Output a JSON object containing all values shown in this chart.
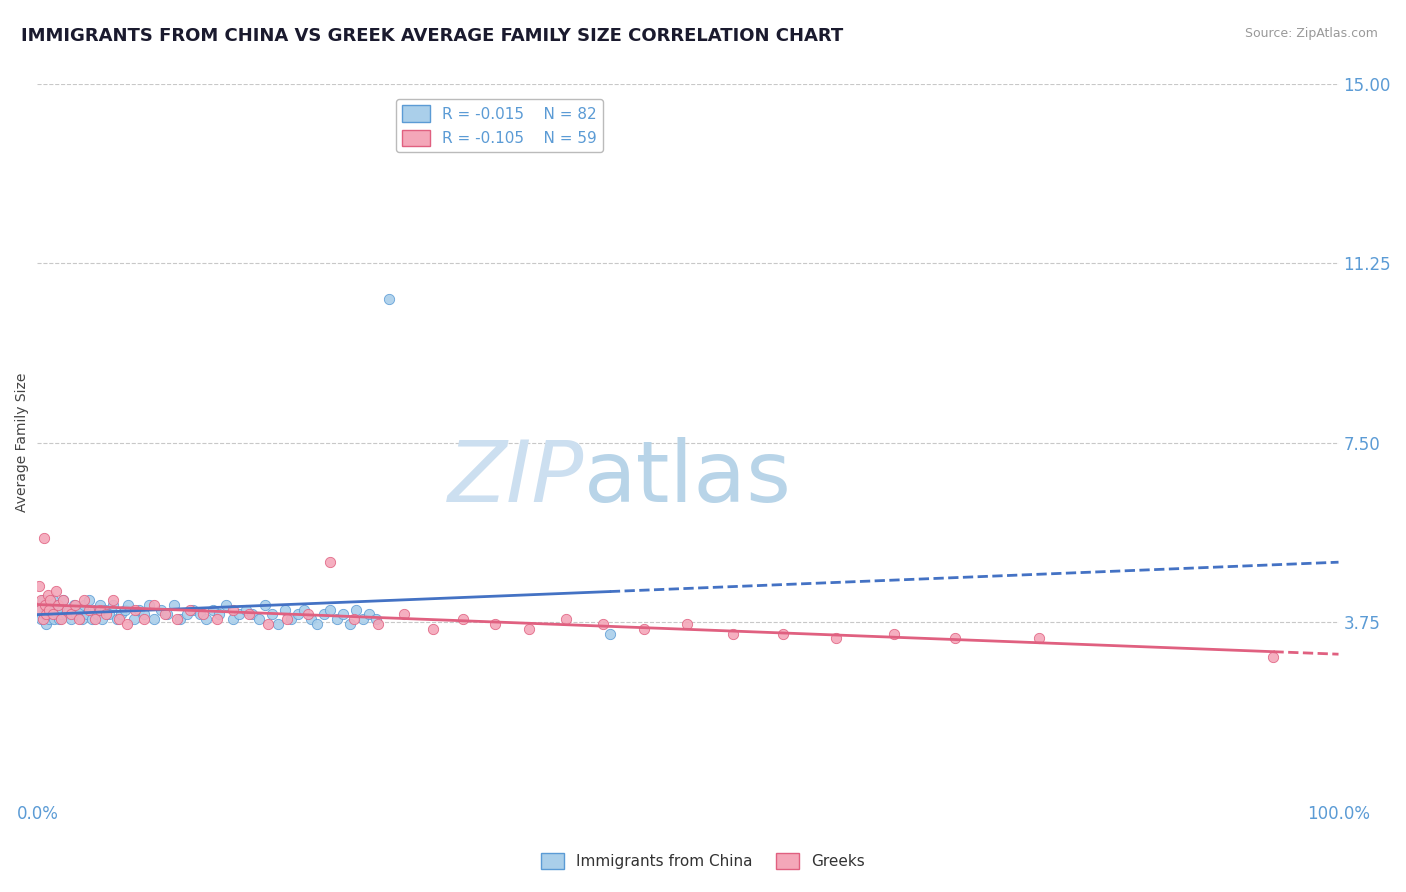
{
  "title": "IMMIGRANTS FROM CHINA VS GREEK AVERAGE FAMILY SIZE CORRELATION CHART",
  "source_text": "Source: ZipAtlas.com",
  "ylabel": "Average Family Size",
  "xlim": [
    0.0,
    1.0
  ],
  "ylim": [
    0.0,
    15.0
  ],
  "yticks": [
    3.75,
    7.5,
    11.25,
    15.0
  ],
  "yticklabels": [
    "3.75",
    "7.50",
    "11.25",
    "15.00"
  ],
  "axis_color": "#5b9bd5",
  "grid_color": "#c8c8c8",
  "background_color": "#ffffff",
  "series": [
    {
      "label": "Immigrants from China",
      "R": -0.015,
      "N": 82,
      "color": "#aacfea",
      "edge_color": "#5b9bd5",
      "trend_color": "#4472c4",
      "x": [
        0.002,
        0.003,
        0.004,
        0.005,
        0.006,
        0.007,
        0.008,
        0.009,
        0.01,
        0.011,
        0.012,
        0.013,
        0.014,
        0.015,
        0.016,
        0.017,
        0.018,
        0.019,
        0.02,
        0.022,
        0.024,
        0.026,
        0.028,
        0.03,
        0.032,
        0.034,
        0.036,
        0.038,
        0.04,
        0.042,
        0.044,
        0.046,
        0.048,
        0.05,
        0.052,
        0.055,
        0.058,
        0.061,
        0.064,
        0.067,
        0.07,
        0.074,
        0.078,
        0.082,
        0.086,
        0.09,
        0.095,
        0.1,
        0.105,
        0.11,
        0.115,
        0.12,
        0.125,
        0.13,
        0.135,
        0.14,
        0.145,
        0.15,
        0.155,
        0.16,
        0.165,
        0.17,
        0.175,
        0.18,
        0.185,
        0.19,
        0.195,
        0.2,
        0.205,
        0.21,
        0.215,
        0.22,
        0.225,
        0.23,
        0.235,
        0.24,
        0.245,
        0.25,
        0.255,
        0.26,
        0.27,
        0.44
      ],
      "y": [
        4.0,
        3.8,
        4.2,
        3.9,
        4.1,
        3.7,
        4.0,
        3.8,
        4.1,
        3.9,
        4.2,
        3.8,
        4.0,
        3.9,
        4.1,
        3.8,
        3.9,
        4.0,
        4.2,
        3.9,
        4.0,
        3.8,
        4.1,
        3.9,
        4.0,
        3.8,
        4.1,
        3.9,
        4.2,
        3.8,
        4.0,
        3.9,
        4.1,
        3.8,
        4.0,
        3.9,
        4.1,
        3.8,
        3.9,
        4.0,
        4.1,
        3.8,
        4.0,
        3.9,
        4.1,
        3.8,
        4.0,
        3.9,
        4.1,
        3.8,
        3.9,
        4.0,
        3.9,
        3.8,
        4.0,
        3.9,
        4.1,
        3.8,
        3.9,
        4.0,
        3.9,
        3.8,
        4.1,
        3.9,
        3.7,
        4.0,
        3.8,
        3.9,
        4.0,
        3.8,
        3.7,
        3.9,
        4.0,
        3.8,
        3.9,
        3.7,
        4.0,
        3.8,
        3.9,
        3.8,
        10.5,
        3.5
      ]
    },
    {
      "label": "Greeks",
      "R": -0.105,
      "N": 59,
      "color": "#f4a7b9",
      "edge_color": "#e06080",
      "trend_color": "#e06080",
      "x": [
        0.001,
        0.002,
        0.003,
        0.004,
        0.005,
        0.006,
        0.007,
        0.008,
        0.009,
        0.01,
        0.012,
        0.014,
        0.016,
        0.018,
        0.02,
        0.023,
        0.026,
        0.029,
        0.032,
        0.036,
        0.04,
        0.044,
        0.048,
        0.053,
        0.058,
        0.063,
        0.069,
        0.075,
        0.082,
        0.09,
        0.098,
        0.107,
        0.117,
        0.127,
        0.138,
        0.15,
        0.163,
        0.177,
        0.192,
        0.208,
        0.225,
        0.243,
        0.262,
        0.282,
        0.304,
        0.327,
        0.352,
        0.378,
        0.406,
        0.435,
        0.466,
        0.499,
        0.535,
        0.573,
        0.614,
        0.658,
        0.705,
        0.77,
        0.95
      ],
      "y": [
        4.5,
        4.0,
        4.2,
        3.8,
        5.5,
        4.1,
        3.9,
        4.3,
        4.0,
        4.2,
        3.9,
        4.4,
        4.1,
        3.8,
        4.2,
        4.0,
        3.9,
        4.1,
        3.8,
        4.2,
        4.0,
        3.8,
        4.0,
        3.9,
        4.2,
        3.8,
        3.7,
        4.0,
        3.8,
        4.1,
        3.9,
        3.8,
        4.0,
        3.9,
        3.8,
        4.0,
        3.9,
        3.7,
        3.8,
        3.9,
        5.0,
        3.8,
        3.7,
        3.9,
        3.6,
        3.8,
        3.7,
        3.6,
        3.8,
        3.7,
        3.6,
        3.7,
        3.5,
        3.5,
        3.4,
        3.5,
        3.4,
        3.4,
        3.0
      ]
    }
  ],
  "watermark_zip": "ZIP",
  "watermark_atlas": "atlas",
  "watermark_color_zip": "#ccdff0",
  "watermark_color_atlas": "#b8d4e8",
  "title_fontsize": 13,
  "label_fontsize": 10,
  "tick_fontsize": 12,
  "legend_fontsize": 11
}
